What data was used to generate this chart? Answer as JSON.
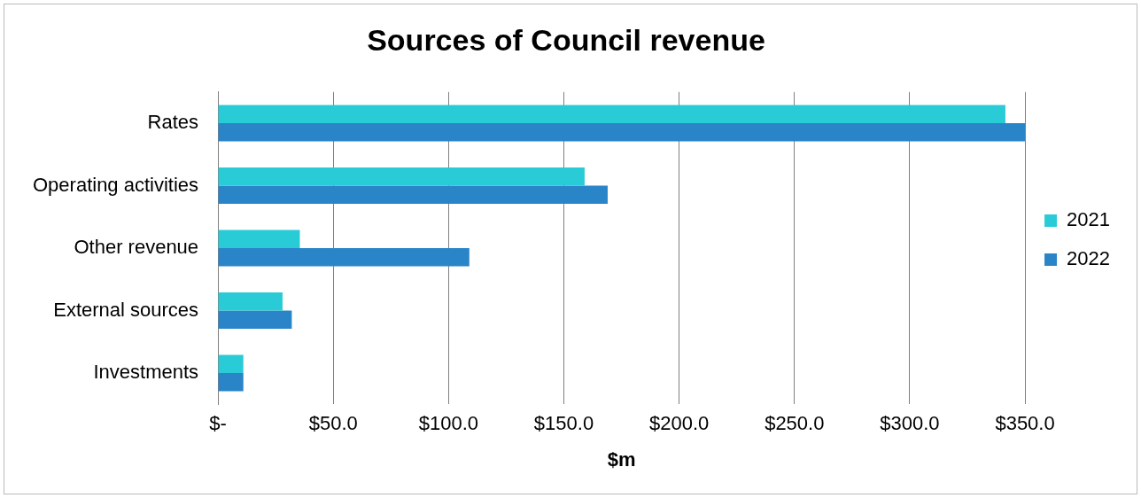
{
  "chart_data": {
    "type": "bar",
    "orientation": "horizontal",
    "title": "Sources of Council revenue",
    "xlabel": "$m",
    "categories": [
      "Rates",
      "Operating activities",
      "Other revenue",
      "External sources",
      "Investments"
    ],
    "series": [
      {
        "name": "2021",
        "color": "#29cbd6",
        "values": [
          341.5,
          159,
          35.5,
          28,
          11
        ]
      },
      {
        "name": "2022",
        "color": "#2a84c8",
        "values": [
          350,
          169,
          109,
          32,
          11
        ]
      }
    ],
    "xlim": [
      0,
      350
    ],
    "xticks": [
      {
        "value": 0,
        "label": "$-"
      },
      {
        "value": 50,
        "label": "$50.0"
      },
      {
        "value": 100,
        "label": "$100.0"
      },
      {
        "value": 150,
        "label": "$150.0"
      },
      {
        "value": 200,
        "label": "$200.0"
      },
      {
        "value": 250,
        "label": "$250.0"
      },
      {
        "value": 300,
        "label": "$300.0"
      },
      {
        "value": 350,
        "label": "$350.0"
      }
    ],
    "grid": "x",
    "legend": "right"
  }
}
